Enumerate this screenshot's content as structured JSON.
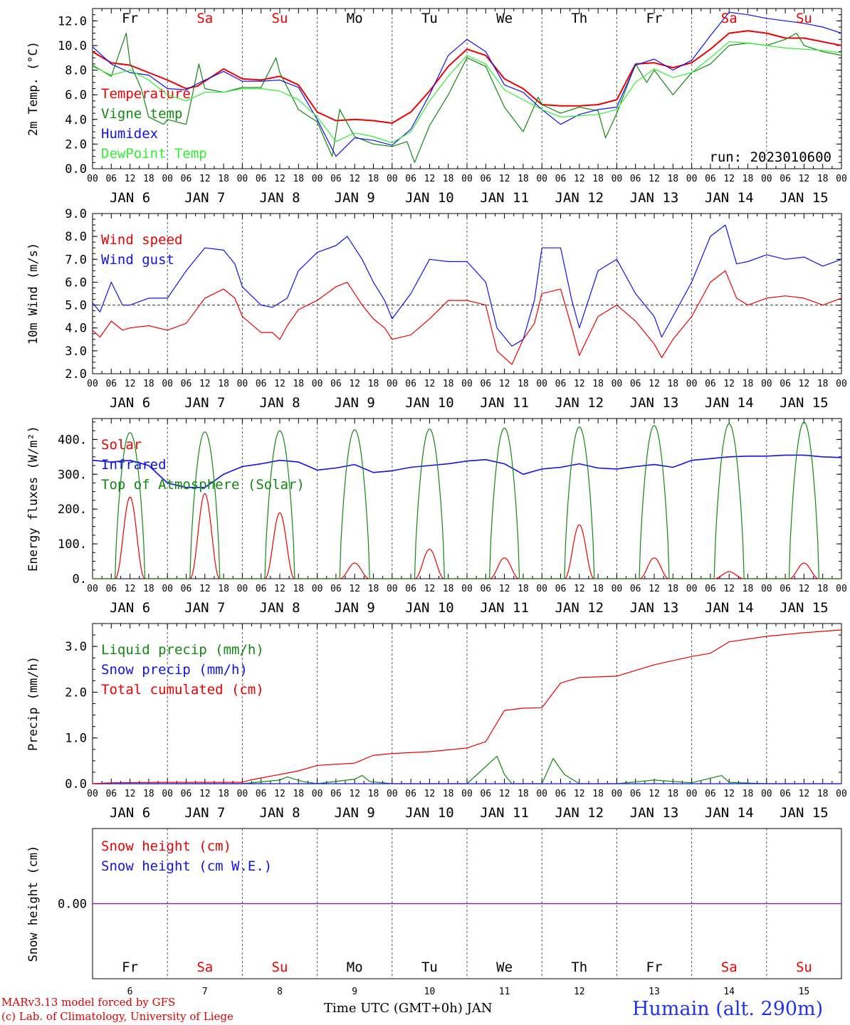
{
  "meta": {
    "run": "run: 2023010600"
  },
  "colors": {
    "red": "#ee0000",
    "green": "#118811",
    "blue": "#1111ee",
    "lightgreen": "#33ee33",
    "purple": "#8822aa",
    "daySat": "#ee0000",
    "dayWeek": "#000000"
  },
  "days": {
    "names": [
      "Fr",
      "Sa",
      "Su",
      "Mo",
      "Tu",
      "We",
      "Th",
      "Fr",
      "Sa",
      "Su"
    ],
    "weekend": [
      false,
      true,
      true,
      false,
      false,
      false,
      false,
      false,
      true,
      true
    ],
    "dates": [
      "JAN  6",
      "JAN  7",
      "JAN  8",
      "JAN  9",
      "JAN 10",
      "JAN 11",
      "JAN 12",
      "JAN 13",
      "JAN 14",
      "JAN 15"
    ],
    "numbers": [
      "6",
      "7",
      "8",
      "9",
      "10",
      "11",
      "12",
      "13",
      "14",
      "15"
    ],
    "hour_labels": [
      "00",
      "06",
      "12",
      "18"
    ],
    "final_hour": "00"
  },
  "footer": {
    "credit1": "MARv3.13 model forced by GFS",
    "credit2": "(c) Lab. of Climatology, University of Liege",
    "xaxis_title": "Time UTC (GMT+0h) JAN",
    "station": "Humain (alt. 290m)"
  },
  "chart_data": [
    {
      "type": "line",
      "id": "temp",
      "ylabel": "2m Temp. (°C)",
      "ylim": [
        0,
        13
      ],
      "yticks": [
        "0.0",
        "2.0",
        "4.0",
        "6.0",
        "8.0",
        "10.0",
        "12.0"
      ],
      "ytick_values": [
        0,
        2,
        4,
        6,
        8,
        10,
        12
      ],
      "x_unit": "day offset from JAN 6 00 UTC",
      "xlim": [
        0,
        10
      ],
      "series": [
        {
          "name": "Temperature",
          "color": "#ee0000",
          "x": [
            0,
            0.25,
            0.5,
            0.75,
            1,
            1.25,
            1.4,
            1.75,
            2,
            2.25,
            2.5,
            2.75,
            3,
            3.25,
            3.5,
            3.75,
            4,
            4.25,
            4.5,
            4.75,
            5,
            5.25,
            5.5,
            5.75,
            6,
            6.25,
            6.5,
            6.75,
            7,
            7.25,
            7.5,
            7.75,
            8,
            8.25,
            8.5,
            8.75,
            9,
            9.25,
            9.5,
            9.75,
            10
          ],
          "y": [
            9.5,
            8.6,
            8.4,
            7.8,
            7.2,
            6.5,
            6.7,
            8.1,
            7.3,
            7.2,
            7.5,
            6.8,
            4.6,
            3.9,
            4.0,
            3.9,
            3.7,
            4.6,
            6.3,
            8.3,
            9.7,
            9.2,
            7.3,
            6.5,
            5.2,
            5.1,
            5.1,
            5.2,
            5.6,
            8.5,
            8.6,
            8.2,
            8.6,
            9.7,
            11.0,
            11.2,
            11.0,
            10.6,
            10.6,
            10.3,
            10.0
          ]
        },
        {
          "name": "Vigne temp",
          "color": "#118811",
          "x": [
            0,
            0.25,
            0.45,
            0.5,
            0.65,
            0.75,
            0.95,
            1,
            1.25,
            1.42,
            1.5,
            1.75,
            2,
            2.25,
            2.45,
            2.5,
            2.75,
            3,
            3.2,
            3.3,
            3.5,
            3.75,
            4,
            4.2,
            4.3,
            4.5,
            4.75,
            5,
            5.25,
            5.5,
            5.75,
            5.95,
            6,
            6.25,
            6.5,
            6.75,
            6.85,
            7,
            7.25,
            7.4,
            7.5,
            7.75,
            8,
            8.25,
            8.5,
            8.75,
            9,
            9.25,
            9.4,
            9.5,
            9.75,
            10
          ],
          "y": [
            8.4,
            7.5,
            11.0,
            8.6,
            6.5,
            4.2,
            3.6,
            4.0,
            3.6,
            8.5,
            6.5,
            6.2,
            6.6,
            6.6,
            9.0,
            7.8,
            4.8,
            3.8,
            1.0,
            4.8,
            2.6,
            2.0,
            1.8,
            2.2,
            0.5,
            3.5,
            6.0,
            9.0,
            8.3,
            5.0,
            3.0,
            5.8,
            5.2,
            4.5,
            5.0,
            4.7,
            2.5,
            4.5,
            8.5,
            7.0,
            8.0,
            6.0,
            7.8,
            8.5,
            10.0,
            10.2,
            10.0,
            10.5,
            11.0,
            10.0,
            9.5,
            9.2
          ]
        },
        {
          "name": "Humidex",
          "color": "#1111ee",
          "x": [
            0,
            0.25,
            0.5,
            0.75,
            1,
            1.25,
            1.4,
            1.75,
            2,
            2.25,
            2.5,
            2.75,
            3,
            3.25,
            3.5,
            3.75,
            4,
            4.25,
            4.5,
            4.75,
            5,
            5.25,
            5.5,
            5.75,
            6,
            6.25,
            6.5,
            6.75,
            7,
            7.25,
            7.5,
            7.75,
            8,
            8.25,
            8.5,
            8.75,
            9,
            9.25,
            9.5,
            9.75,
            10
          ],
          "y": [
            9.9,
            8.5,
            7.8,
            7.6,
            6.5,
            6.4,
            6.9,
            7.9,
            7.1,
            7.1,
            7.2,
            6.6,
            4.0,
            1.0,
            2.5,
            2.3,
            1.9,
            3.2,
            6.0,
            9.2,
            10.5,
            9.5,
            6.8,
            6.2,
            4.8,
            3.6,
            4.4,
            4.8,
            5.0,
            8.4,
            8.9,
            8.0,
            8.8,
            10.8,
            12.7,
            12.5,
            12.2,
            12.0,
            11.8,
            11.5,
            11.0
          ]
        },
        {
          "name": "DewPoint Temp",
          "color": "#33ee33",
          "x": [
            0,
            0.25,
            0.5,
            0.75,
            1,
            1.25,
            1.5,
            1.75,
            2,
            2.25,
            2.5,
            2.75,
            3,
            3.25,
            3.5,
            3.75,
            4,
            4.25,
            4.5,
            4.75,
            5,
            5.25,
            5.5,
            5.75,
            6,
            6.25,
            6.5,
            6.75,
            7,
            7.25,
            7.5,
            7.75,
            8,
            8.25,
            8.5,
            8.75,
            9,
            9.25,
            9.5,
            9.75,
            10
          ],
          "y": [
            8.3,
            7.6,
            8.0,
            7.2,
            6.0,
            5.5,
            6.2,
            6.2,
            6.5,
            6.5,
            6.3,
            5.6,
            4.2,
            2.2,
            2.9,
            2.6,
            2.1,
            3.0,
            5.5,
            7.5,
            9.2,
            8.5,
            6.4,
            5.6,
            4.8,
            4.2,
            4.3,
            4.4,
            4.8,
            7.0,
            8.1,
            7.4,
            7.8,
            9.0,
            10.3,
            10.2,
            10.0,
            9.8,
            9.7,
            9.6,
            9.4
          ]
        }
      ]
    },
    {
      "type": "line",
      "id": "wind",
      "ylabel": "10m Wind (m/s)",
      "ylim": [
        2,
        9
      ],
      "yticks": [
        "2.0",
        "3.0",
        "4.0",
        "5.0",
        "6.0",
        "7.0",
        "8.0",
        "9.0"
      ],
      "ytick_values": [
        2,
        3,
        4,
        5,
        6,
        7,
        8,
        9
      ],
      "ref_line": 5.0,
      "x_unit": "day offset from JAN 6 00 UTC",
      "xlim": [
        0,
        10
      ],
      "series": [
        {
          "name": "Wind speed",
          "color": "#ee0000",
          "x": [
            0,
            0.1,
            0.25,
            0.4,
            0.5,
            0.75,
            1,
            1.25,
            1.5,
            1.75,
            1.9,
            2,
            2.25,
            2.4,
            2.5,
            2.6,
            2.75,
            3,
            3.25,
            3.4,
            3.6,
            3.75,
            3.9,
            4,
            4.25,
            4.5,
            4.75,
            5,
            5.25,
            5.4,
            5.6,
            5.75,
            5.9,
            6,
            6.25,
            6.4,
            6.5,
            6.75,
            7,
            7.25,
            7.5,
            7.6,
            7.75,
            8,
            8.25,
            8.45,
            8.6,
            8.75,
            9,
            9.25,
            9.5,
            9.75,
            10
          ],
          "y": [
            3.9,
            3.6,
            4.3,
            3.9,
            4.0,
            4.1,
            3.9,
            4.2,
            5.3,
            5.7,
            5.3,
            4.5,
            3.8,
            3.8,
            3.5,
            4.1,
            4.8,
            5.2,
            5.8,
            6.0,
            5.0,
            4.4,
            4.0,
            3.5,
            3.7,
            4.4,
            5.2,
            5.2,
            5.0,
            3.0,
            2.4,
            3.5,
            4.2,
            5.5,
            5.7,
            4.0,
            2.8,
            4.5,
            5.0,
            4.3,
            3.3,
            2.7,
            3.5,
            4.5,
            6.0,
            6.5,
            5.3,
            5.0,
            5.3,
            5.4,
            5.3,
            5.0,
            5.3
          ]
        },
        {
          "name": "Wind gust",
          "color": "#1111ee",
          "x": [
            0,
            0.1,
            0.25,
            0.4,
            0.5,
            0.75,
            1,
            1.25,
            1.5,
            1.75,
            1.9,
            2,
            2.25,
            2.4,
            2.5,
            2.6,
            2.75,
            3,
            3.25,
            3.4,
            3.6,
            3.75,
            3.9,
            4,
            4.25,
            4.5,
            4.75,
            5,
            5.25,
            5.4,
            5.6,
            5.75,
            5.9,
            6,
            6.25,
            6.4,
            6.5,
            6.75,
            7,
            7.25,
            7.5,
            7.6,
            7.75,
            8,
            8.25,
            8.45,
            8.6,
            8.75,
            9,
            9.25,
            9.5,
            9.75,
            10
          ],
          "y": [
            5.1,
            4.7,
            6.0,
            5.0,
            5.0,
            5.3,
            5.3,
            6.5,
            7.5,
            7.4,
            6.8,
            5.8,
            5.0,
            4.9,
            5.1,
            5.3,
            6.5,
            7.3,
            7.6,
            8.0,
            7.0,
            6.0,
            5.2,
            4.4,
            5.5,
            7.0,
            6.9,
            6.9,
            6.0,
            4.0,
            3.2,
            3.5,
            5.2,
            7.5,
            7.5,
            5.2,
            4.0,
            6.5,
            7.0,
            5.5,
            4.5,
            3.6,
            4.5,
            6.0,
            8.0,
            8.5,
            6.8,
            6.9,
            7.2,
            7.0,
            7.1,
            6.7,
            7.0
          ]
        }
      ]
    },
    {
      "type": "line",
      "id": "flux",
      "ylabel": "Energy fluxes (W/m²)",
      "ylim": [
        0,
        460
      ],
      "yticks": [
        "0.",
        "100.",
        "200.",
        "300.",
        "400."
      ],
      "ytick_values": [
        0,
        100,
        200,
        300,
        400
      ],
      "x_unit": "day offset from JAN 6 00 UTC",
      "xlim": [
        0,
        10
      ],
      "series": [
        {
          "name": "Solar",
          "color": "#ee0000",
          "peaks": [
            235,
            245,
            190,
            45,
            85,
            60,
            155,
            60,
            20,
            45
          ]
        },
        {
          "name": "Infrared",
          "color": "#1111ee",
          "x": [
            0,
            0.25,
            0.5,
            0.75,
            1,
            1.25,
            1.5,
            1.75,
            2,
            2.25,
            2.5,
            2.75,
            3,
            3.25,
            3.5,
            3.75,
            4,
            4.25,
            4.5,
            4.75,
            5,
            5.25,
            5.5,
            5.75,
            6,
            6.25,
            6.5,
            6.75,
            7,
            7.25,
            7.5,
            7.75,
            8,
            8.25,
            8.5,
            8.75,
            9,
            9.25,
            9.5,
            9.75,
            10
          ],
          "y": [
            340,
            335,
            340,
            325,
            275,
            262,
            262,
            300,
            322,
            330,
            340,
            335,
            312,
            318,
            328,
            305,
            310,
            320,
            325,
            330,
            338,
            342,
            330,
            300,
            315,
            320,
            330,
            318,
            315,
            322,
            328,
            320,
            340,
            345,
            350,
            352,
            352,
            355,
            355,
            350,
            348
          ]
        },
        {
          "name": "Top of Atmosphere (Solar)",
          "color": "#118811",
          "peaks": [
            420,
            422,
            425,
            428,
            430,
            433,
            436,
            440,
            445,
            450
          ]
        }
      ]
    },
    {
      "type": "line",
      "id": "precip",
      "ylabel": "Precip (mm/h)",
      "ylim": [
        0,
        3.5
      ],
      "yticks": [
        "0.0",
        "1.0",
        "2.0",
        "3.0"
      ],
      "ytick_values": [
        0,
        1,
        2,
        3
      ],
      "x_unit": "day offset from JAN 6 00 UTC",
      "xlim": [
        0,
        10
      ],
      "series": [
        {
          "name": "Liquid precip (mm/h)",
          "color": "#118811",
          "x": [
            0,
            2,
            2.5,
            2.6,
            2.8,
            3,
            3.5,
            3.6,
            3.7,
            4,
            4.5,
            5,
            5.3,
            5.4,
            5.5,
            5.6,
            6,
            6.15,
            6.3,
            6.5,
            7,
            7.5,
            8,
            8.4,
            8.5,
            9,
            10
          ],
          "y": [
            0,
            0,
            0.08,
            0.15,
            0.05,
            0,
            0.1,
            0.18,
            0.05,
            0,
            0,
            0,
            0.45,
            0.6,
            0.2,
            0,
            0,
            0.55,
            0.2,
            0,
            0,
            0.08,
            0.02,
            0.18,
            0.03,
            0,
            0
          ]
        },
        {
          "name": "Snow precip (mm/h)",
          "color": "#1111ee",
          "x": [
            0,
            10
          ],
          "y": [
            0,
            0
          ]
        },
        {
          "name": "Total cumulated (cm)",
          "color": "#ee0000",
          "x": [
            0,
            0.25,
            1,
            2,
            2.1,
            2.5,
            2.75,
            3,
            3.5,
            3.75,
            4,
            4.5,
            5,
            5.25,
            5.5,
            5.75,
            6,
            6.25,
            6.5,
            7,
            7.5,
            8,
            8.25,
            8.5,
            9,
            9.5,
            10
          ],
          "y": [
            0,
            0.02,
            0.03,
            0.03,
            0.08,
            0.2,
            0.28,
            0.4,
            0.45,
            0.62,
            0.66,
            0.7,
            0.78,
            0.92,
            1.6,
            1.65,
            1.66,
            2.2,
            2.32,
            2.35,
            2.6,
            2.78,
            2.85,
            3.1,
            3.22,
            3.3,
            3.36
          ]
        }
      ]
    },
    {
      "type": "line",
      "id": "snow",
      "ylabel": "Snow height (cm)",
      "ylim": [
        -1,
        1
      ],
      "yticks": [
        "0.00"
      ],
      "ytick_values": [
        0
      ],
      "x_unit": "day offset from JAN 6 00 UTC",
      "xlim": [
        0,
        10
      ],
      "series": [
        {
          "name": "Snow height (cm)",
          "color": "#ee0000",
          "x": [
            0,
            10
          ],
          "y": [
            0,
            0
          ]
        },
        {
          "name": "Snow height (cm W.E.)",
          "color": "#1111ee",
          "x": [
            0,
            10
          ],
          "y": [
            0,
            0
          ]
        }
      ]
    }
  ]
}
